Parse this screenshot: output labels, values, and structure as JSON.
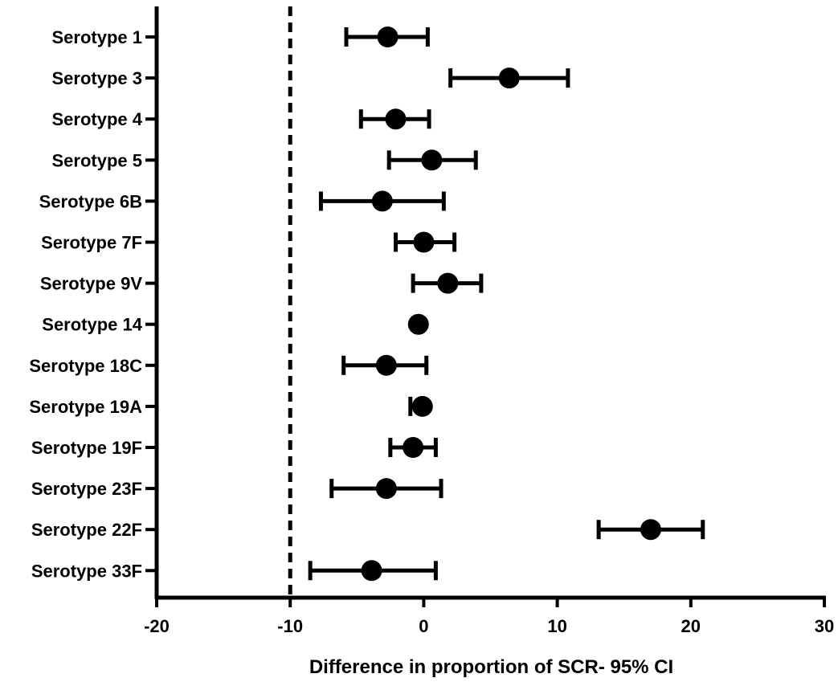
{
  "chart_data": {
    "type": "scatter",
    "title": "",
    "xlabel": "Difference in proportion of SCR- 95% CI",
    "ylabel": "",
    "xlim": [
      -20,
      30
    ],
    "xticks": [
      "-20",
      "-10",
      "0",
      "10",
      "20",
      "30"
    ],
    "reference_line": {
      "x": -10,
      "style": "dashed"
    },
    "grid": false,
    "legend": "none",
    "colors": {
      "marker": "#000000",
      "line": "#000000"
    },
    "categories": [
      "Serotype 1",
      "Serotype 3",
      "Serotype 4",
      "Serotype 5",
      "Serotype 6B",
      "Serotype 7F",
      "Serotype 9V",
      "Serotype 14",
      "Serotype 18C",
      "Serotype 19A",
      "Serotype 19F",
      "Serotype 23F",
      "Serotype 22F",
      "Serotype 33F"
    ],
    "points": [
      {
        "category": "Serotype 1",
        "estimate": -2.7,
        "ci_low": -5.8,
        "ci_high": 0.3
      },
      {
        "category": "Serotype 3",
        "estimate": 6.4,
        "ci_low": 2.0,
        "ci_high": 10.8
      },
      {
        "category": "Serotype 4",
        "estimate": -2.1,
        "ci_low": -4.7,
        "ci_high": 0.4
      },
      {
        "category": "Serotype 5",
        "estimate": 0.6,
        "ci_low": -2.6,
        "ci_high": 3.9
      },
      {
        "category": "Serotype 6B",
        "estimate": -3.1,
        "ci_low": -7.7,
        "ci_high": 1.5
      },
      {
        "category": "Serotype 7F",
        "estimate": 0.0,
        "ci_low": -2.1,
        "ci_high": 2.3
      },
      {
        "category": "Serotype 9V",
        "estimate": 1.8,
        "ci_low": -0.8,
        "ci_high": 4.3
      },
      {
        "category": "Serotype 14",
        "estimate": -0.4,
        "ci_low": -0.6,
        "ci_high": -0.2
      },
      {
        "category": "Serotype 18C",
        "estimate": -2.8,
        "ci_low": -6.0,
        "ci_high": 0.2
      },
      {
        "category": "Serotype 19A",
        "estimate": -0.1,
        "ci_low": -1.0,
        "ci_high": 0.0
      },
      {
        "category": "Serotype 19F",
        "estimate": -0.8,
        "ci_low": -2.5,
        "ci_high": 0.9
      },
      {
        "category": "Serotype 23F",
        "estimate": -2.8,
        "ci_low": -6.9,
        "ci_high": 1.3
      },
      {
        "category": "Serotype 22F",
        "estimate": 17.0,
        "ci_low": 13.1,
        "ci_high": 20.9
      },
      {
        "category": "Serotype 33F",
        "estimate": -3.9,
        "ci_low": -8.5,
        "ci_high": 0.9
      }
    ]
  }
}
